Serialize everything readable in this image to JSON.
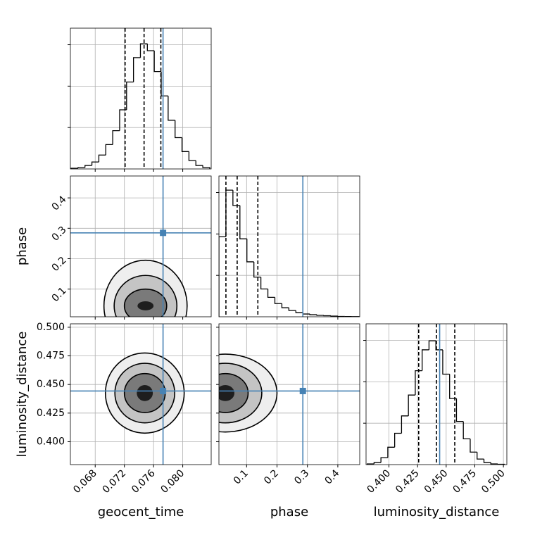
{
  "chart_data": {
    "type": "corner",
    "grid": true,
    "truth_color": "#4682b4",
    "line_color": "#000000",
    "contour_fills": [
      "#eeeeee",
      "#c4c4c4",
      "#7a7a7a",
      "#1e1e1e"
    ],
    "parameters": [
      {
        "name": "geocent_time",
        "xlim": [
          0.0646,
          0.0839
        ],
        "ticks": [
          0.068,
          0.072,
          0.076,
          {
            "value": 0.08,
            "label": "0.080"
          }
        ],
        "truth": 0.0773,
        "quantiles": [
          0.0721,
          0.0747,
          0.077
        ],
        "bins": [
          0.0647,
          0.06565,
          0.0666,
          0.06755,
          0.0685,
          0.06945,
          0.0704,
          0.07135,
          0.0723,
          0.07325,
          0.0742,
          0.07515,
          0.0761,
          0.07705,
          0.078,
          0.07895,
          0.0799,
          0.08085,
          0.0818,
          0.08275,
          0.0837
        ],
        "counts": [
          17,
          34,
          84,
          168,
          336,
          588,
          924,
          1428,
          2100,
          2688,
          3024,
          2856,
          2352,
          1764,
          1176,
          756,
          420,
          202,
          84,
          34
        ],
        "ylim": [
          0,
          3400
        ],
        "yticks": [
          1000,
          2000,
          3000
        ]
      },
      {
        "name": "phase",
        "xlim": [
          0.009,
          0.472
        ],
        "ticks": [
          0.1,
          0.2,
          0.3,
          0.4
        ],
        "truth": 0.285,
        "quantiles": [
          0.032,
          0.069,
          0.137
        ],
        "bins": [
          0.009,
          0.032,
          0.055,
          0.078,
          0.101,
          0.124,
          0.147,
          0.17,
          0.193,
          0.216,
          0.239,
          0.262,
          0.285,
          0.308,
          0.331,
          0.354,
          0.377,
          0.4,
          0.423,
          0.446,
          0.469
        ],
        "counts": [
          1932,
          3058,
          2688,
          1882,
          1327,
          958,
          672,
          470,
          319,
          218,
          151,
          101,
          67,
          50,
          34,
          25,
          17,
          8,
          5,
          3
        ],
        "ylim": [
          0,
          3400
        ],
        "yticks": [
          1000,
          2000,
          3000
        ]
      },
      {
        "name": "luminosity_distance",
        "xlim": [
          0.38,
          0.503
        ],
        "ticks": [
          {
            "value": 0.4,
            "label": "0.400"
          },
          0.425,
          {
            "value": 0.45,
            "label": "0.450"
          },
          0.475,
          {
            "value": 0.5,
            "label": "0.500"
          }
        ],
        "truth": 0.4443,
        "quantiles": [
          0.426,
          0.4415,
          0.4575
        ],
        "bins": [
          0.381,
          0.387,
          0.393,
          0.399,
          0.405,
          0.411,
          0.417,
          0.423,
          0.429,
          0.435,
          0.441,
          0.447,
          0.453,
          0.459,
          0.465,
          0.471,
          0.477,
          0.483,
          0.489,
          0.495,
          0.501
        ],
        "counts": [
          17,
          50,
          168,
          420,
          756,
          1176,
          1680,
          2268,
          2772,
          2990,
          2772,
          2184,
          1596,
          1042,
          622,
          302,
          134,
          50,
          17,
          8
        ],
        "ylim": [
          0,
          3400
        ],
        "yticks": [
          1000,
          2000,
          3000
        ]
      }
    ],
    "pairs": [
      {
        "contours": [
          {
            "x": 0.0749,
            "y": 0.045,
            "rx": 0.0057,
            "ry": 0.15
          },
          {
            "x": 0.0749,
            "y": 0.045,
            "rx": 0.0043,
            "ry": 0.1
          },
          {
            "x": 0.0749,
            "y": 0.045,
            "rx": 0.0029,
            "ry": 0.055
          },
          {
            "x": 0.0749,
            "y": 0.045,
            "rx": 0.0011,
            "ry": 0.015
          }
        ]
      },
      {
        "contours": [
          {
            "x": 0.0748,
            "y": 0.4425,
            "rx": 0.0054,
            "ry": 0.035
          },
          {
            "x": 0.0748,
            "y": 0.4425,
            "rx": 0.0041,
            "ry": 0.026
          },
          {
            "x": 0.0748,
            "y": 0.4425,
            "rx": 0.0028,
            "ry": 0.017
          },
          {
            "x": 0.0748,
            "y": 0.4425,
            "rx": 0.0011,
            "ry": 0.007
          }
        ]
      },
      {
        "contours": [
          {
            "x": 0.03,
            "y": 0.4425,
            "rx": 0.17,
            "ry": 0.034
          },
          {
            "x": 0.03,
            "y": 0.4425,
            "rx": 0.12,
            "ry": 0.026
          },
          {
            "x": 0.03,
            "y": 0.4425,
            "rx": 0.075,
            "ry": 0.017
          },
          {
            "x": 0.03,
            "y": 0.4425,
            "rx": 0.03,
            "ry": 0.007
          }
        ]
      }
    ]
  }
}
